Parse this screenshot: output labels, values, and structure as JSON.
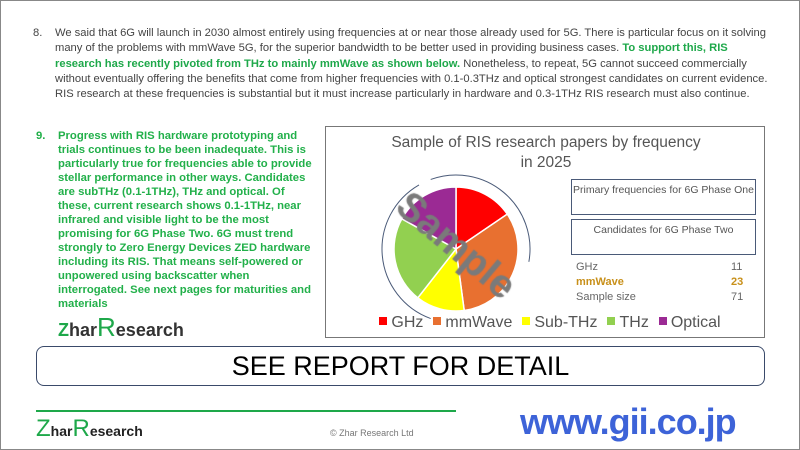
{
  "para8": {
    "num": "8.",
    "text1": "We said that 6G will launch in 2030 almost entirely using frequencies at or near those already used for 5G. There is particular focus on it solving many of the problems with mmWave 5G, for the superior bandwidth to be better used in providing business cases. ",
    "highlight": "To support this, RIS research has recently pivoted from THz to mainly mmWave as shown below.",
    "text2": " Nonetheless, to repeat, 5G cannot succeed commercially without eventually offering the benefits that come from higher frequencies with 0.1-0.3THz and optical strongest candidates on current evidence. RIS research at these frequencies is substantial but it must increase particularly in hardware and 0.3-1THz RIS research must also continue."
  },
  "para9": {
    "num": "9.",
    "text": "Progress with RIS hardware prototyping and trials continues to be been inadequate. This is particularly true for frequencies able to provide stellar performance in other ways. Candidates are subTHz (0.1-1THz), THz and optical. Of these, current research shows 0.1-1THz, near infrared and visible light to be the most promising for 6G Phase Two. 6G must trend strongly to Zero Energy Devices ZED hardware including its RIS. That means self-powered or unpowered using backscatter when interrogated. See next pages for maturities and materials"
  },
  "chart_data": {
    "type": "pie",
    "title": "Sample of RIS research papers by frequency in 2025",
    "categories": [
      "GHz",
      "mmWave",
      "Sub-THz",
      "THz",
      "Optical"
    ],
    "values": [
      11,
      23,
      9,
      16,
      12
    ],
    "colors": [
      "#ff0000",
      "#e87030",
      "#ffff00",
      "#92d050",
      "#9b2a94"
    ],
    "legend": "bottom",
    "table": [
      {
        "label": "GHz",
        "value": "11"
      },
      {
        "label": "mmWave",
        "value": "23"
      }
    ],
    "sample_size_label": "Sample size",
    "sample_size": "71",
    "annotations": [
      "Primary frequencies for 6G Phase One",
      "Candidates for 6G Phase Two"
    ]
  },
  "banner": "SEE REPORT FOR DETAIL",
  "logo": {
    "z": "Z",
    "har": "har",
    "r": "R",
    "esearch": "esearch"
  },
  "copyright": "© Zhar Research Ltd",
  "watermark_sample": "Sample",
  "watermark_url": "www.gii.co.jp"
}
